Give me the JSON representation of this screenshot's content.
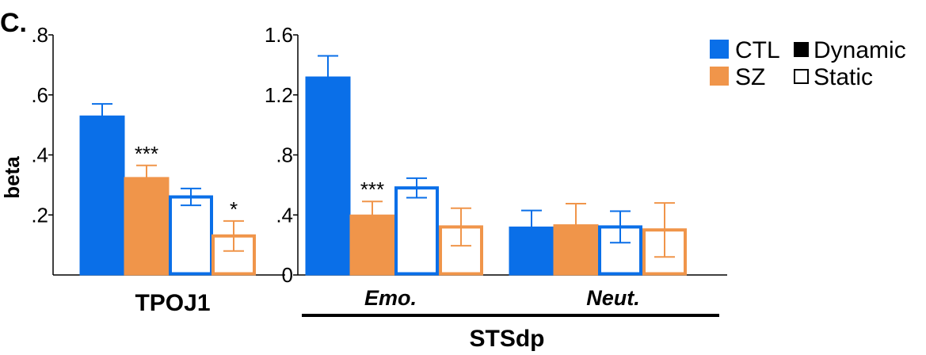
{
  "panel_label": "C.",
  "legend": {
    "groups": [
      {
        "label": "CTL",
        "color": "#0a6fe8"
      },
      {
        "label": "SZ",
        "color": "#f0954a"
      }
    ],
    "conditions": [
      {
        "label": "Dynamic",
        "fill": "filled"
      },
      {
        "label": "Static",
        "fill": "open"
      }
    ]
  },
  "chart_data": [
    {
      "type": "bar",
      "ylabel": "beta",
      "ylim": [
        0,
        0.8
      ],
      "yticks": [
        ".2",
        ".4",
        ".6",
        ".8"
      ],
      "xlabel": "TPOJ1",
      "groups": [
        {
          "label": "",
          "bars": [
            {
              "series": "CTL",
              "condition": "Dynamic",
              "value": 0.53,
              "err": 0.04,
              "stars": ""
            },
            {
              "series": "SZ",
              "condition": "Dynamic",
              "value": 0.325,
              "err": 0.04,
              "stars": "***"
            },
            {
              "series": "CTL",
              "condition": "Static",
              "value": 0.26,
              "err": 0.028,
              "stars": ""
            },
            {
              "series": "SZ",
              "condition": "Static",
              "value": 0.13,
              "err": 0.05,
              "stars": "*"
            }
          ]
        }
      ]
    },
    {
      "type": "bar",
      "ylim": [
        0,
        1.6
      ],
      "yticks": [
        "0",
        ".4",
        ".8",
        "1.2",
        "1.6"
      ],
      "xlabel": "STSdp",
      "groups": [
        {
          "label": "Emo.",
          "bars": [
            {
              "series": "CTL",
              "condition": "Dynamic",
              "value": 1.32,
              "err": 0.14,
              "stars": ""
            },
            {
              "series": "SZ",
              "condition": "Dynamic",
              "value": 0.4,
              "err": 0.09,
              "stars": "***"
            },
            {
              "series": "CTL",
              "condition": "Static",
              "value": 0.58,
              "err": 0.065,
              "stars": ""
            },
            {
              "series": "SZ",
              "condition": "Static",
              "value": 0.32,
              "err": 0.125,
              "stars": ""
            }
          ]
        },
        {
          "label": "Neut.",
          "bars": [
            {
              "series": "CTL",
              "condition": "Dynamic",
              "value": 0.32,
              "err": 0.11,
              "stars": ""
            },
            {
              "series": "SZ",
              "condition": "Dynamic",
              "value": 0.335,
              "err": 0.14,
              "stars": ""
            },
            {
              "series": "CTL",
              "condition": "Static",
              "value": 0.32,
              "err": 0.105,
              "stars": ""
            },
            {
              "series": "SZ",
              "condition": "Static",
              "value": 0.3,
              "err": 0.18,
              "stars": ""
            }
          ]
        }
      ]
    }
  ]
}
